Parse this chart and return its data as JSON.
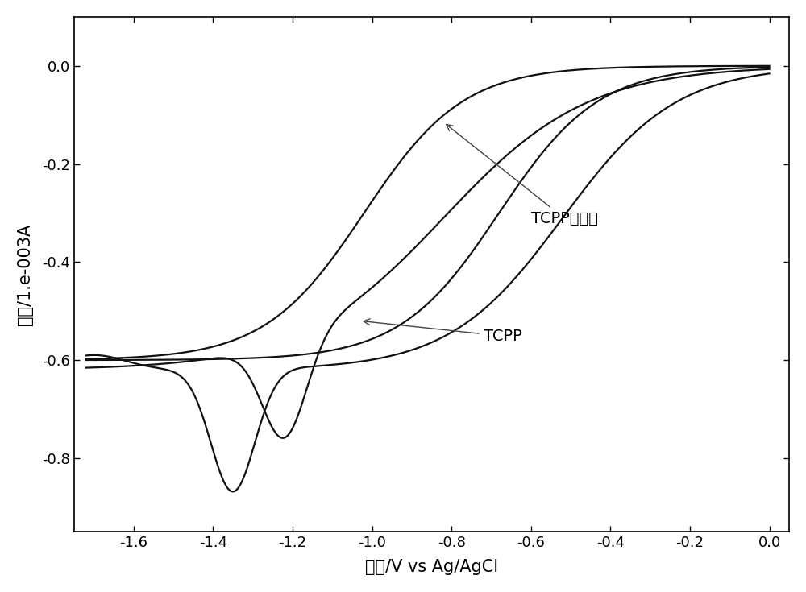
{
  "xlabel": "电压/V vs Ag/AgCl",
  "ylabel": "电流/1.e-003A",
  "xlim": [
    -1.75,
    0.05
  ],
  "ylim": [
    -0.95,
    0.1
  ],
  "xticks": [
    -1.6,
    -1.4,
    -1.2,
    -1.0,
    -0.8,
    -0.6,
    -0.4,
    -0.2,
    0.0
  ],
  "yticks": [
    0.0,
    -0.2,
    -0.4,
    -0.6,
    -0.8
  ],
  "label_tcpp_hydrogel": "TCPP水凝胶",
  "label_tcpp": "TCPP",
  "line_color": "#111111",
  "background_color": "#ffffff",
  "axis_fontsize": 15,
  "tick_fontsize": 13,
  "annotation_fontsize": 14
}
